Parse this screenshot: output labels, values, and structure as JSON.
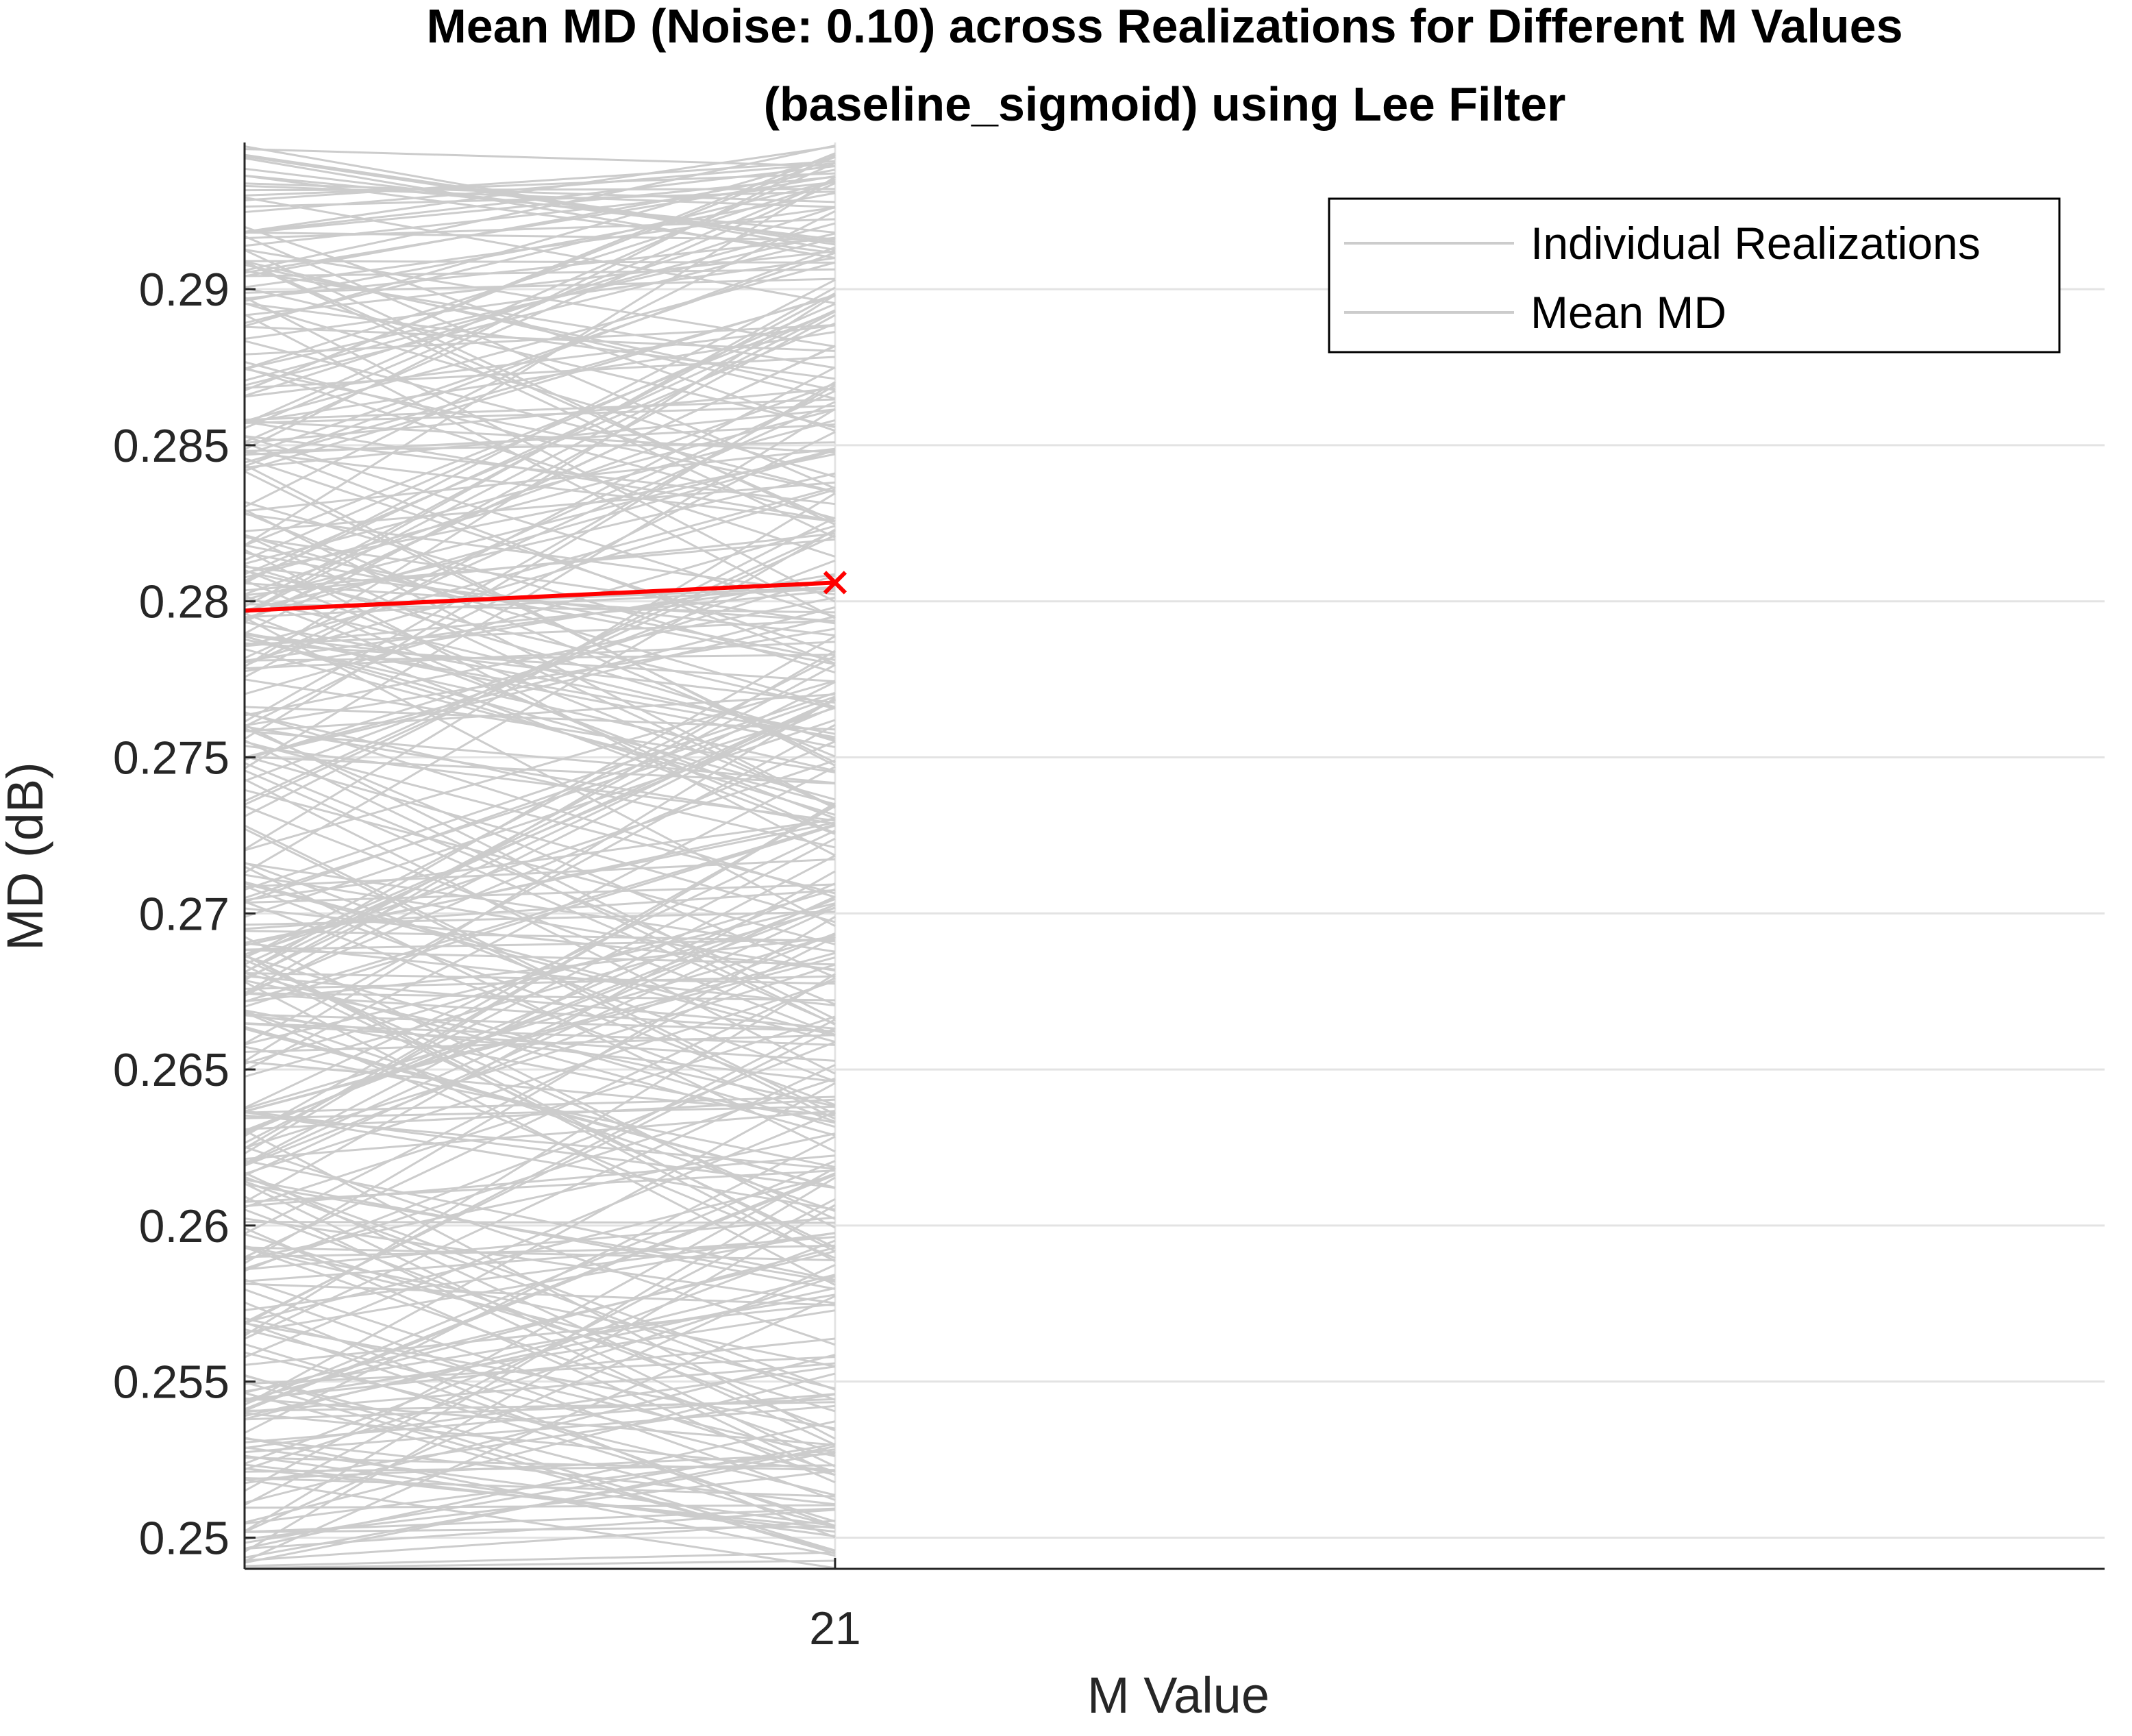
{
  "chart_data": {
    "type": "line",
    "title": "Mean MD (Noise: 0.10) across Realizations for Different M Values",
    "subtitle": "(baseline_sigmoid) using Lee Filter",
    "xlabel": "M Value",
    "ylabel": "MD (dB)",
    "x_ticks": [
      "21"
    ],
    "y_ticks": [
      "0.25",
      "0.255",
      "0.26",
      "0.265",
      "0.27",
      "0.275",
      "0.28",
      "0.285",
      "0.29"
    ],
    "ylim": [
      0.249,
      0.2947
    ],
    "grid": true,
    "legend": {
      "placement": "top-right",
      "entries": [
        "Individual Realizations",
        "Mean MD"
      ]
    },
    "series": [
      {
        "name": "Individual Realizations",
        "color": "#cccccc",
        "count": 400,
        "x": [
          20,
          21
        ],
        "y_range_at_20": [
          0.249,
          0.2947
        ],
        "y_range_at_21": [
          0.249,
          0.2947
        ]
      },
      {
        "name": "Mean MD",
        "color": "#ff0000",
        "marker": "x",
        "x": [
          20,
          21
        ],
        "y": [
          0.2797,
          0.2806
        ]
      }
    ]
  }
}
